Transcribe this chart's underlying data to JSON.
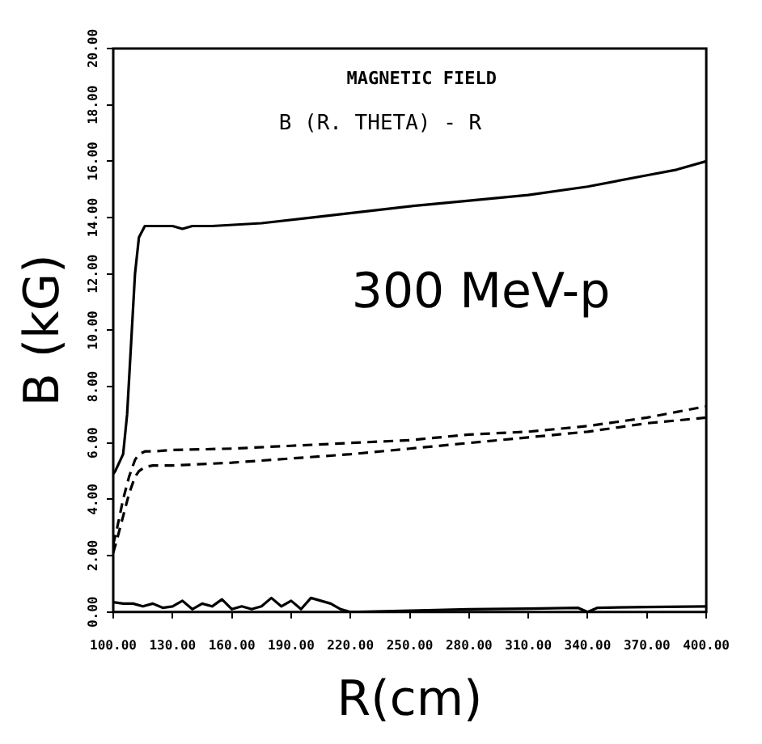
{
  "chart_data": {
    "type": "line",
    "title": "MAGNETIC FIELD",
    "subtitle": "B (R. THETA) - R",
    "xlabel": "R(cm)",
    "ylabel": "B (kG)",
    "annotations": [
      "300 MeV-p"
    ],
    "xlim": [
      100,
      400
    ],
    "xticks": [
      {
        "value": 100,
        "label": "100.00"
      },
      {
        "value": 130,
        "label": "130.00"
      },
      {
        "value": 160,
        "label": "160.00"
      },
      {
        "value": 190,
        "label": "190.00"
      },
      {
        "value": 220,
        "label": "220.00"
      },
      {
        "value": 250,
        "label": "250.00"
      },
      {
        "value": 280,
        "label": "280.00"
      },
      {
        "value": 310,
        "label": "310.00"
      },
      {
        "value": 340,
        "label": "340.00"
      },
      {
        "value": 370,
        "label": "370.00"
      },
      {
        "value": 400,
        "label": "400.00"
      }
    ],
    "ylim": [
      0,
      20
    ],
    "yticks": [
      {
        "value": 0,
        "label": "0.00"
      },
      {
        "value": 2,
        "label": "2.00"
      },
      {
        "value": 4,
        "label": "4.00"
      },
      {
        "value": 6,
        "label": "6.00"
      },
      {
        "value": 8,
        "label": "8.00"
      },
      {
        "value": 10,
        "label": "10.00"
      },
      {
        "value": 12,
        "label": "12.00"
      },
      {
        "value": 14,
        "label": "14.00"
      },
      {
        "value": 16,
        "label": "16.00"
      },
      {
        "value": 18,
        "label": "18.00"
      },
      {
        "value": 20,
        "label": "20.00"
      }
    ],
    "grid": false,
    "legend": false,
    "marker": "none",
    "series": [
      {
        "color": "#000000",
        "line_style": "solid",
        "x": [
          100,
          101,
          103,
          105,
          107,
          109,
          111,
          113,
          116,
          120,
          130,
          135,
          140,
          150,
          175,
          200,
          225,
          250,
          280,
          310,
          340,
          370,
          385,
          400
        ],
        "values": [
          4.9,
          5.0,
          5.3,
          5.6,
          7,
          9.5,
          12,
          13.3,
          13.7,
          13.7,
          13.7,
          13.6,
          13.7,
          13.7,
          13.8,
          14.0,
          14.2,
          14.4,
          14.6,
          14.8,
          15.1,
          15.5,
          15.7,
          16.0
        ]
      },
      {
        "color": "#000000",
        "line_style": "dashed",
        "x": [
          100,
          102,
          105,
          108,
          111,
          113,
          116,
          120,
          130,
          160,
          190,
          220,
          250,
          280,
          310,
          340,
          370,
          385,
          400
        ],
        "values": [
          2.4,
          3.0,
          4.0,
          4.8,
          5.4,
          5.6,
          5.7,
          5.7,
          5.75,
          5.8,
          5.9,
          6.0,
          6.1,
          6.3,
          6.4,
          6.6,
          6.9,
          7.1,
          7.3
        ]
      },
      {
        "color": "#000000",
        "line_style": "dashed",
        "x": [
          100,
          102,
          105,
          108,
          111,
          113,
          116,
          120,
          130,
          160,
          190,
          220,
          250,
          280,
          310,
          340,
          370,
          385,
          400
        ],
        "values": [
          2.1,
          2.6,
          3.4,
          4.2,
          4.8,
          5.0,
          5.15,
          5.2,
          5.2,
          5.3,
          5.45,
          5.6,
          5.8,
          6.0,
          6.2,
          6.4,
          6.7,
          6.8,
          6.9
        ]
      },
      {
        "color": "#000000",
        "line_style": "solid",
        "x": [
          100,
          105,
          110,
          115,
          120,
          125,
          130,
          135,
          140,
          145,
          150,
          155,
          160,
          165,
          170,
          175,
          180,
          185,
          190,
          195,
          200,
          205,
          210,
          215,
          220,
          250,
          280,
          310,
          335,
          340,
          345,
          370,
          400
        ],
        "values": [
          0.35,
          0.3,
          0.3,
          0.2,
          0.3,
          0.15,
          0.2,
          0.4,
          0.1,
          0.3,
          0.2,
          0.45,
          0.1,
          0.2,
          0.1,
          0.2,
          0.5,
          0.2,
          0.4,
          0.1,
          0.5,
          0.4,
          0.3,
          0.1,
          0.0,
          0.05,
          0.1,
          0.12,
          0.15,
          0.0,
          0.15,
          0.18,
          0.2
        ]
      }
    ]
  }
}
